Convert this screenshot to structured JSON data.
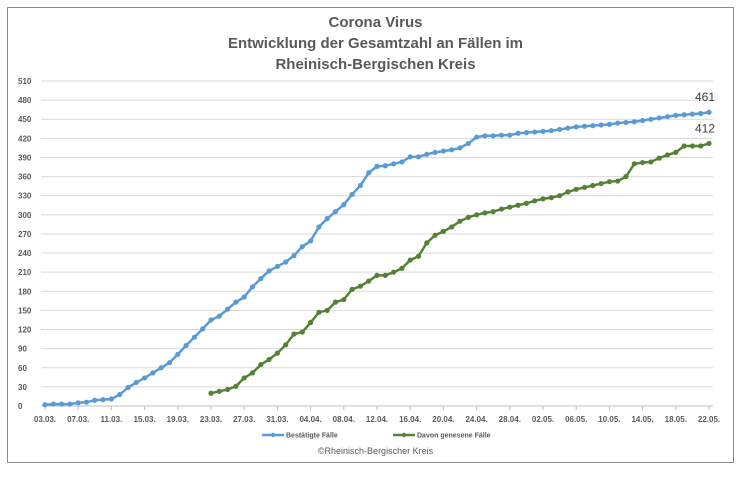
{
  "chart_data": {
    "type": "line",
    "title": [
      "Corona Virus",
      "Entwicklung der Gesamtzahl an Fällen im",
      "Rheinisch-Bergischen Kreis"
    ],
    "start_date": "03.03.",
    "x_tick_labels": [
      "03.03.",
      "07.03.",
      "11.03.",
      "15.03.",
      "19.03.",
      "23.03.",
      "27.03.",
      "31.03.",
      "04.04.",
      "08.04.",
      "12.04.",
      "16.04.",
      "20.04.",
      "24.04.",
      "28.04.",
      "02.05.",
      "06.05.",
      "10.05.",
      "14.05.",
      "18.05.",
      "22.05."
    ],
    "y_ticks": [
      0,
      30,
      60,
      90,
      120,
      150,
      180,
      210,
      240,
      270,
      300,
      330,
      360,
      390,
      420,
      450,
      480,
      510
    ],
    "ylim": [
      0,
      510
    ],
    "grid": true,
    "legend_position": "bottom",
    "series": [
      {
        "name": "Bestätigte Fälle",
        "color": "#5b9bd5",
        "start_index": 0,
        "end_label": "461",
        "values": [
          2,
          3,
          3,
          3,
          5,
          6,
          9,
          10,
          11,
          18,
          29,
          37,
          44,
          52,
          60,
          68,
          81,
          95,
          108,
          121,
          135,
          141,
          152,
          163,
          171,
          187,
          200,
          212,
          219,
          226,
          236,
          250,
          259,
          281,
          294,
          305,
          316,
          332,
          346,
          366,
          376,
          377,
          380,
          383,
          391,
          391,
          395,
          398,
          400,
          402,
          405,
          412,
          422,
          424,
          424,
          425,
          425,
          428,
          429,
          430,
          431,
          432,
          434,
          436,
          438,
          439,
          440,
          441,
          442,
          444,
          445,
          446,
          448,
          450,
          452,
          454,
          456,
          457,
          458,
          459,
          461
        ]
      },
      {
        "name": "Davon genesene Fälle",
        "color": "#548235",
        "start_index": 20,
        "end_label": "412",
        "values": [
          20,
          23,
          26,
          31,
          44,
          52,
          65,
          73,
          83,
          96,
          113,
          116,
          131,
          147,
          150,
          163,
          167,
          183,
          188,
          196,
          205,
          205,
          210,
          216,
          229,
          235,
          256,
          268,
          274,
          281,
          290,
          296,
          300,
          303,
          305,
          309,
          312,
          315,
          318,
          322,
          325,
          327,
          330,
          336,
          340,
          343,
          346,
          349,
          352,
          353,
          360,
          380,
          382,
          383,
          389,
          394,
          398,
          408,
          408,
          408,
          412
        ]
      }
    ]
  },
  "copyright": "©Rheinisch-Bergischer Kreis"
}
